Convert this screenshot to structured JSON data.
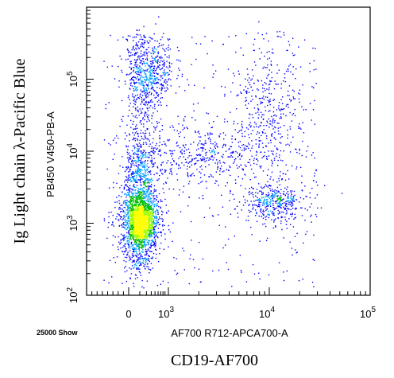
{
  "chart_data": {
    "type": "scatter",
    "subtype": "flow-cytometry density dot plot",
    "outer_ylabel": "Ig Light chain λ-Pacific Blue",
    "outer_xlabel": "CD19-AF700",
    "inner_ylabel": "PB450 V450-PB-A",
    "inner_xlabel": "AF700 R712-APCA700-A",
    "footnote": "25000 Show",
    "x_scale": "biexponential",
    "y_scale": "log",
    "x_ticks": [
      {
        "value": 0,
        "base": "0",
        "exp": ""
      },
      {
        "value": 1000,
        "base": "10",
        "exp": "3"
      },
      {
        "value": 10000,
        "base": "10",
        "exp": "4"
      },
      {
        "value": 100000,
        "base": "10",
        "exp": "5"
      }
    ],
    "y_ticks": [
      {
        "value": 100,
        "base": "10",
        "exp": "2"
      },
      {
        "value": 1000,
        "base": "10",
        "exp": "3"
      },
      {
        "value": 10000,
        "base": "10",
        "exp": "4"
      },
      {
        "value": 100000,
        "base": "10",
        "exp": "5"
      }
    ],
    "xlim": [
      -800,
      100000
    ],
    "ylim": [
      100,
      1000000
    ],
    "events_shown": 25000,
    "grid": false,
    "populations": [
      {
        "center_x": 100,
        "center_y": 1200,
        "relative_density": "very high",
        "color": "#00c000"
      },
      {
        "center_x": 300,
        "center_y": 130000,
        "relative_density": "medium",
        "color": "#0000ff"
      },
      {
        "center_x": 11000,
        "center_y": 2000,
        "relative_density": "medium",
        "color": "#0000ff"
      },
      {
        "center_x": 10000,
        "center_y": 40000,
        "relative_density": "low",
        "color": "#0000ff"
      },
      {
        "center_x": 2000,
        "center_y": 9000,
        "relative_density": "low",
        "color": "#0000ff"
      }
    ],
    "density_colors": [
      "#0000ff",
      "#00a0ff",
      "#00c000",
      "#a0ff00",
      "#ffff00"
    ]
  }
}
